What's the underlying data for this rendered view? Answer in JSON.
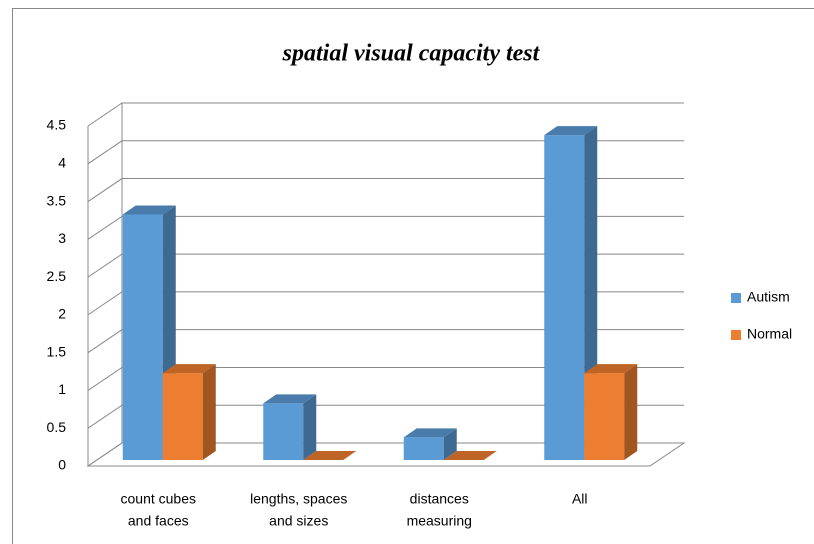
{
  "chart_data": {
    "type": "bar3d",
    "title": "spatial visual capacity test",
    "categories": [
      [
        "count cubes",
        "and faces"
      ],
      [
        "lengths, spaces",
        "and sizes"
      ],
      [
        "distances",
        "measuring"
      ],
      [
        "All"
      ]
    ],
    "series": [
      {
        "name": "Autism",
        "color": "#5b9bd5",
        "values": [
          3.25,
          0.75,
          0.3,
          4.3
        ]
      },
      {
        "name": "Normal",
        "color": "#ed7d31",
        "values": [
          1.15,
          0,
          0,
          1.15
        ]
      }
    ],
    "ylim": [
      0,
      4.5
    ],
    "yticks": [
      0,
      0.5,
      1,
      1.5,
      2,
      2.5,
      3,
      3.5,
      4,
      4.5
    ],
    "grid": true,
    "legend": "right"
  }
}
